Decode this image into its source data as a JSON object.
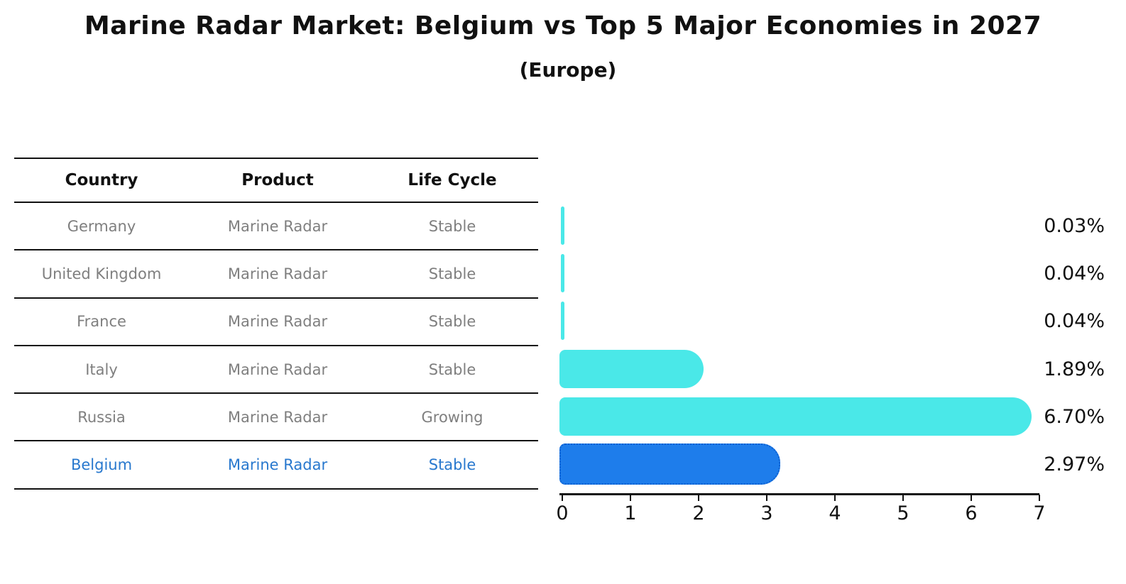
{
  "title": "Marine Radar Market: Belgium vs Top 5 Major Economies in 2027",
  "subtitle": "(Europe)",
  "colors": {
    "bar_default": "#4AE8E8",
    "bar_highlight_fill": "#1E7DEB",
    "bar_highlight_edge": "#0C5FD0",
    "table_text": "#7f7f7f",
    "highlight_text": "#2878CE",
    "axis_text": "#111111"
  },
  "table": {
    "headers": [
      "Country",
      "Product",
      "Life Cycle"
    ],
    "rows": [
      {
        "country": "Germany",
        "product": "Marine Radar",
        "life_cycle": "Stable",
        "highlight": false
      },
      {
        "country": "United Kingdom",
        "product": "Marine Radar",
        "life_cycle": "Stable",
        "highlight": false
      },
      {
        "country": "France",
        "product": "Marine Radar",
        "life_cycle": "Stable",
        "highlight": false
      },
      {
        "country": "Italy",
        "product": "Marine Radar",
        "life_cycle": "Stable",
        "highlight": false
      },
      {
        "country": "Russia",
        "product": "Marine Radar",
        "life_cycle": "Growing",
        "highlight": false
      },
      {
        "country": "Belgium",
        "product": "Marine Radar",
        "life_cycle": "Stable",
        "highlight": true
      }
    ]
  },
  "chart_data": {
    "type": "bar",
    "orientation": "horizontal",
    "title": "Marine Radar Market: Belgium vs Top 5 Major Economies in 2027",
    "subtitle": "(Europe)",
    "categories": [
      "Germany",
      "United Kingdom",
      "France",
      "Italy",
      "Russia",
      "Belgium"
    ],
    "values": [
      0.03,
      0.04,
      0.04,
      1.89,
      6.7,
      2.97
    ],
    "value_labels": [
      "0.03%",
      "0.04%",
      "0.04%",
      "1.89%",
      "6.70%",
      "2.97%"
    ],
    "highlight_index": 5,
    "xlabel": "",
    "ylabel": "",
    "xlim": [
      0,
      7
    ],
    "x_ticks": [
      "0",
      "1",
      "2",
      "3",
      "4",
      "5",
      "6",
      "7"
    ],
    "grid": false,
    "legend": false
  }
}
